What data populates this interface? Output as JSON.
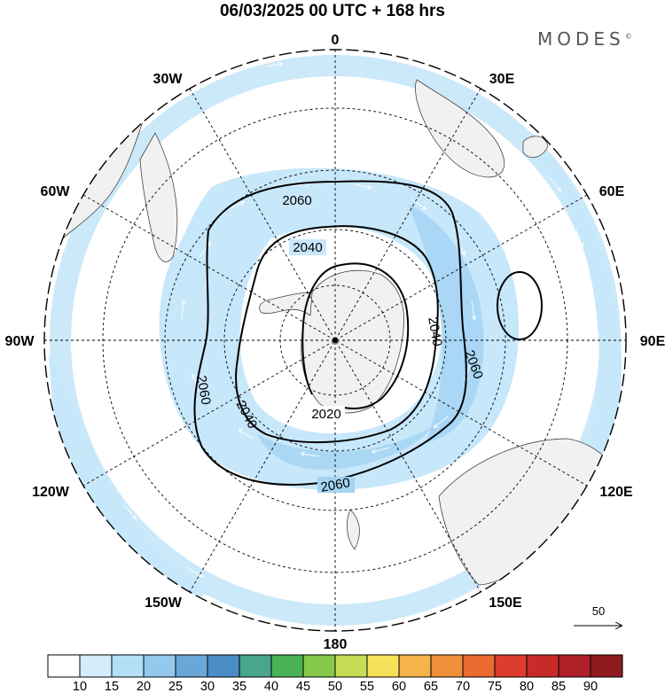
{
  "header": {
    "title": "06/03/2025  00 UTC  + 168 hrs",
    "brand": "MODES",
    "brand_mark": "©"
  },
  "map": {
    "projection": "south-polar-stereographic",
    "longitude_labels": [
      "0",
      "30E",
      "60E",
      "90E",
      "120E",
      "150E",
      "180",
      "150W",
      "120W",
      "90W",
      "60W",
      "30W"
    ],
    "contour_labels": [
      "2060",
      "2040",
      "2040",
      "2060",
      "2060",
      "2040",
      "2060",
      "2020"
    ],
    "contour_levels": [
      2020,
      2040,
      2060
    ],
    "colors": {
      "land": "#f1f1f1",
      "wind_light": "#c7e7fa",
      "wind_medium": "#a3d3f3",
      "wind_strong": "#7db9e6",
      "contour": "#000000",
      "graticule": "#000000"
    }
  },
  "vector_key": {
    "label": "50"
  },
  "colorbar": {
    "ticks": [
      "10",
      "15",
      "20",
      "25",
      "30",
      "35",
      "40",
      "45",
      "50",
      "55",
      "60",
      "65",
      "70",
      "75",
      "80",
      "85",
      "90"
    ],
    "colors": [
      "#ffffff",
      "#d4ecfb",
      "#b4dff8",
      "#93c9ee",
      "#6aa7d9",
      "#4b8ec7",
      "#4aa58d",
      "#48b355",
      "#86c94a",
      "#c6dc55",
      "#f7e15b",
      "#f6b34c",
      "#f08f3c",
      "#ea6a31",
      "#dd3c2c",
      "#c82a2a",
      "#ae1f27",
      "#8f1a1d"
    ]
  }
}
